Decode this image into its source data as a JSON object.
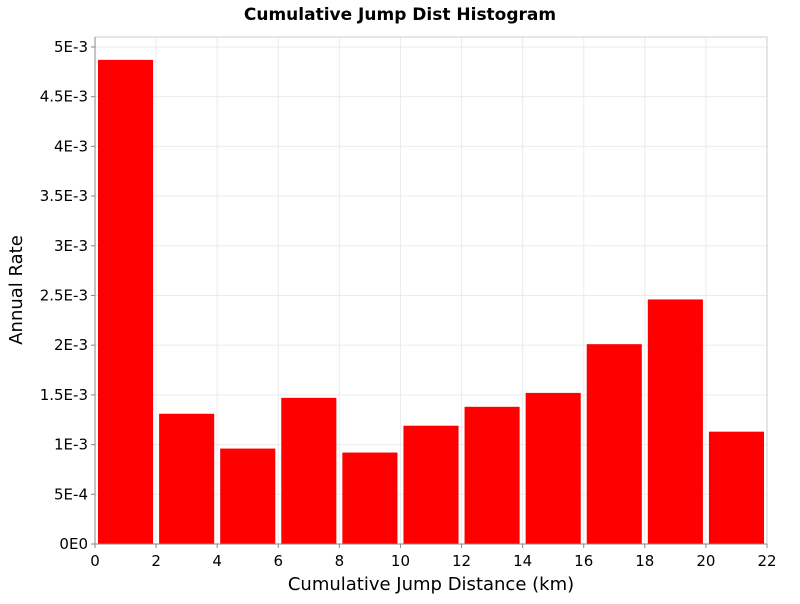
{
  "chart_data": {
    "type": "bar",
    "title": "Cumulative Jump Dist Histogram",
    "xlabel": "Cumulative Jump Distance (km)",
    "ylabel": "Annual Rate",
    "xlim": [
      0,
      22
    ],
    "ylim": [
      0,
      0.0051
    ],
    "x_ticks": [
      0,
      2,
      4,
      6,
      8,
      10,
      12,
      14,
      16,
      18,
      20,
      22
    ],
    "x_tick_labels": [
      "0",
      "2",
      "4",
      "6",
      "8",
      "10",
      "12",
      "14",
      "16",
      "18",
      "20",
      "22"
    ],
    "y_ticks": [
      0,
      0.0005,
      0.001,
      0.0015,
      0.002,
      0.0025,
      0.003,
      0.0035,
      0.004,
      0.0045,
      0.005
    ],
    "y_tick_labels": [
      "0E0",
      "5E-4",
      "1E-3",
      "1.5E-3",
      "2E-3",
      "2.5E-3",
      "3E-3",
      "3.5E-3",
      "4E-3",
      "4.5E-3",
      "5E-3"
    ],
    "bin_width": 2,
    "x": [
      1,
      3,
      5,
      7,
      9,
      11,
      13,
      15,
      17,
      19,
      21
    ],
    "values": [
      0.00487,
      0.00131,
      0.00096,
      0.00147,
      0.00092,
      0.00119,
      0.00138,
      0.00152,
      0.00201,
      0.00246,
      0.00113
    ],
    "bar_color": "#ff0000",
    "grid": true,
    "grid_color": "#ebebeb",
    "legend": "none"
  }
}
